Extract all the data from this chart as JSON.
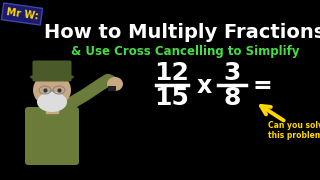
{
  "bg_color": "#000000",
  "title_line1": "How to Multiply Fractions",
  "title_line2": "& Use Cross Cancelling to Simplify",
  "mr_w_text": "Mr W:",
  "mr_w_color": "#FFD700",
  "mr_w_box_color": "#1a1a6e",
  "title_color": "#FFFFFF",
  "subtitle_color": "#44DD44",
  "frac1_num": "12",
  "frac1_den": "15",
  "frac2_num": "3",
  "frac2_den": "8",
  "multiply_sign": "x",
  "equals_sign": "=",
  "math_color": "#FFFFFF",
  "arrow_color": "#FFD700",
  "callout_text_line1": "Can you solve",
  "callout_text_line2": "this problem?",
  "callout_color": "#FFD700",
  "char_body_color": "#6B7B3A",
  "char_face_color": "#C8A882",
  "char_beard_color": "#DDDDDD",
  "char_hat_color": "#4A5A28"
}
